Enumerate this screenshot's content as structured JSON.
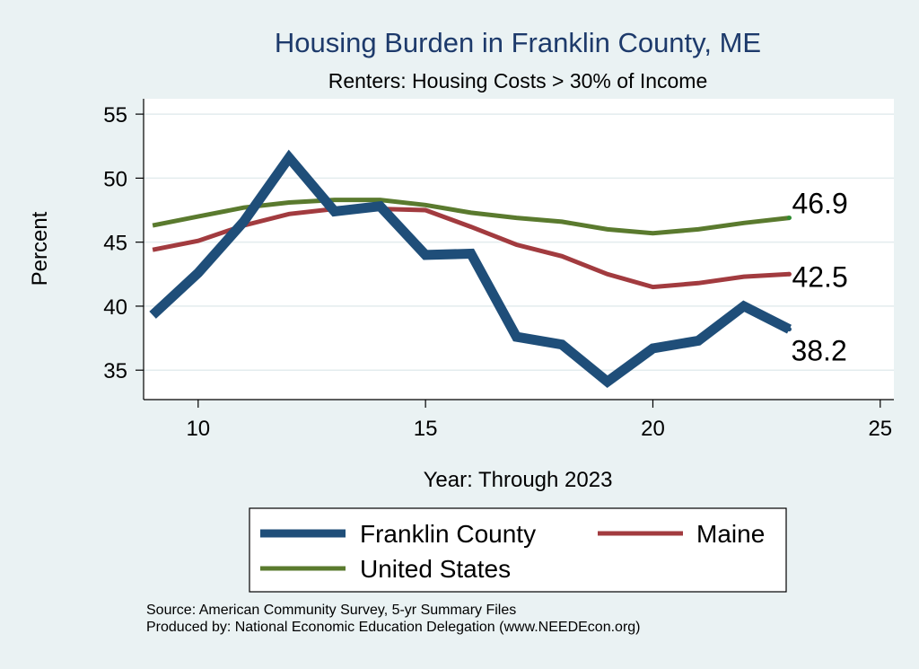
{
  "chart_data": {
    "type": "line",
    "title": "Housing Burden in Franklin County, ME",
    "subtitle": "Renters: Housing Costs > 30% of Income",
    "xlabel": "Year: Through 2023",
    "ylabel": "Percent",
    "xlim": [
      8.8,
      25.3
    ],
    "ylim": [
      32.7,
      56.2
    ],
    "xticks": [
      10,
      15,
      20,
      25
    ],
    "yticks": [
      35,
      40,
      45,
      50,
      55
    ],
    "grid": true,
    "legend_position": "bottom",
    "series": [
      {
        "name": "Franklin County",
        "color": "#1f4e79",
        "x": [
          9,
          10,
          11,
          12,
          13,
          14,
          15,
          16,
          17,
          18,
          19,
          20,
          21,
          22,
          23
        ],
        "y": [
          39.3,
          42.6,
          46.6,
          51.6,
          47.4,
          47.8,
          44.0,
          44.1,
          37.6,
          37.0,
          34.1,
          36.7,
          37.3,
          40.0,
          38.2
        ],
        "end_label": "38.2"
      },
      {
        "name": "Maine",
        "color": "#a23b3f",
        "x": [
          9,
          10,
          11,
          12,
          13,
          14,
          15,
          16,
          17,
          18,
          19,
          20,
          21,
          22,
          23
        ],
        "y": [
          44.4,
          45.1,
          46.3,
          47.2,
          47.6,
          47.6,
          47.5,
          46.2,
          44.8,
          43.9,
          42.5,
          41.5,
          41.8,
          42.3,
          42.5
        ],
        "end_label": "42.5"
      },
      {
        "name": "United States",
        "color": "#5a7a2e",
        "x": [
          9,
          10,
          11,
          12,
          13,
          14,
          15,
          16,
          17,
          18,
          19,
          20,
          21,
          22,
          23
        ],
        "y": [
          46.3,
          47.0,
          47.7,
          48.1,
          48.3,
          48.3,
          47.9,
          47.3,
          46.9,
          46.6,
          46.0,
          45.7,
          46.0,
          46.5,
          46.9
        ],
        "end_label": "46.9"
      }
    ]
  },
  "footnotes": {
    "source": "Source: American Community Survey, 5-yr Summary Files",
    "produced_by": "Produced by: National Economic Education Delegation (www.NEEDEcon.org)"
  }
}
